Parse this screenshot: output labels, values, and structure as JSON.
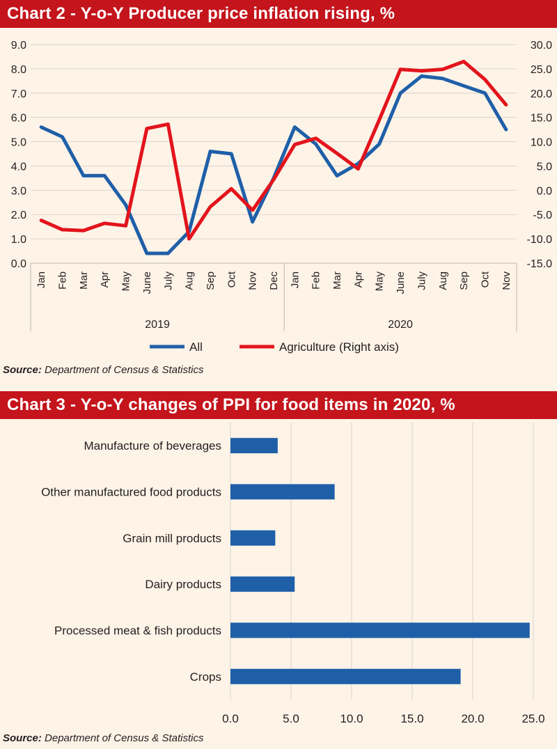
{
  "chart_data": [
    {
      "type": "line",
      "title": "Chart 2 - Y-o-Y Producer price inflation rising, %",
      "source_label": "Source:",
      "source_text": "Department of Census & Statistics",
      "x_labels": [
        "Jan",
        "Feb",
        "Mar",
        "Apr",
        "May",
        "June",
        "July",
        "Aug",
        "Sep",
        "Oct",
        "Nov",
        "Dec",
        "Jan",
        "Feb",
        "Mar",
        "Apr",
        "May",
        "June",
        "July",
        "Aug",
        "Sep",
        "Oct",
        "Nov"
      ],
      "year_groups": [
        {
          "label": "2019",
          "count": 12
        },
        {
          "label": "2020",
          "count": 11
        }
      ],
      "y_left_ticks": [
        "0.0",
        "1.0",
        "2.0",
        "3.0",
        "4.0",
        "5.0",
        "6.0",
        "7.0",
        "8.0",
        "9.0"
      ],
      "y_left_range": [
        0,
        9
      ],
      "y_right_ticks": [
        "-15.0",
        "-10.0",
        "-5.0",
        "0.0",
        "5.0",
        "10.0",
        "15.0",
        "20.0",
        "25.0",
        "30.0"
      ],
      "y_right_range": [
        -15,
        30
      ],
      "grid": true,
      "legend_position": "bottom",
      "series": [
        {
          "name": "All",
          "axis": "left",
          "color": "#1f5fa8",
          "values": [
            5.6,
            5.2,
            3.6,
            3.6,
            2.4,
            0.4,
            0.4,
            1.3,
            4.6,
            4.5,
            1.7,
            3.5,
            5.6,
            4.9,
            3.6,
            4.1,
            4.9,
            7.0,
            7.7,
            7.6,
            7.3,
            7.0,
            5.5
          ]
        },
        {
          "name": "Agriculture (Right axis)",
          "axis": "right",
          "color": "#e3141c",
          "values": [
            -6.2,
            -8.1,
            -8.3,
            -6.8,
            -7.3,
            12.7,
            13.6,
            -10.0,
            -3.4,
            0.3,
            -4.1,
            2.2,
            9.4,
            10.7,
            7.6,
            4.4,
            14.5,
            24.9,
            24.6,
            24.9,
            26.5,
            22.8,
            17.6
          ]
        }
      ]
    },
    {
      "type": "bar",
      "orientation": "horizontal",
      "title": "Chart 3 - Y-o-Y changes of PPI for food items in 2020, %",
      "source_label": "Source:",
      "source_text": "Department of Census & Statistics",
      "categories": [
        "Manufacture of beverages",
        "Other manufactured food products",
        "Grain mill products",
        "Dairy products",
        "Processed meat & fish products",
        "Crops"
      ],
      "values": [
        3.9,
        8.6,
        3.7,
        5.3,
        24.7,
        19.0
      ],
      "x_ticks": [
        "0.0",
        "5.0",
        "10.0",
        "15.0",
        "20.0",
        "25.0"
      ],
      "xlim": [
        0,
        25
      ],
      "grid": true,
      "color": "#1f5fa8"
    }
  ]
}
